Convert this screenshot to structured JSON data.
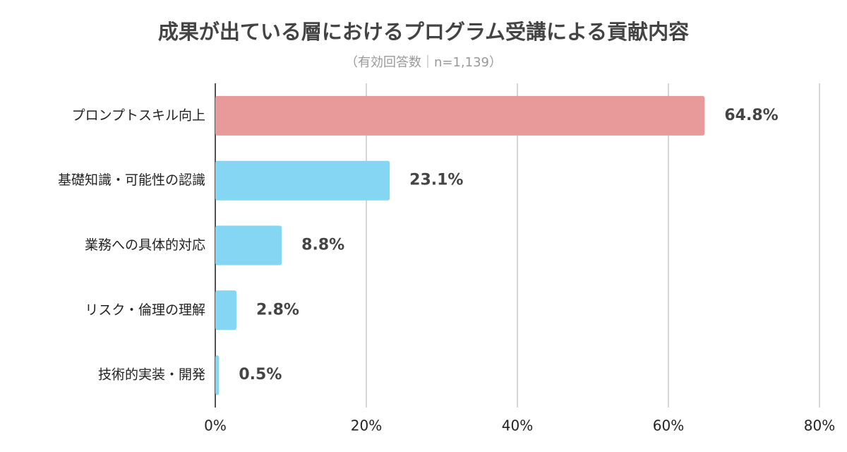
{
  "chart_data": {
    "type": "bar",
    "orientation": "horizontal",
    "title": "成果が出ている層におけるプログラム受講による貢献内容",
    "subtitle": "（有効回答数｜n=1,139）",
    "categories": [
      "プロンプトスキル向上",
      "基礎知識・可能性の認識",
      "業務への具体的対応",
      "リスク・倫理の理解",
      "技術的実装・開発"
    ],
    "values": [
      64.8,
      23.1,
      8.8,
      2.8,
      0.5
    ],
    "value_labels": [
      "64.8%",
      "23.1%",
      "8.8%",
      "2.8%",
      "0.5%"
    ],
    "colors": [
      "#e89a9b",
      "#84d6f2",
      "#84d6f2",
      "#84d6f2",
      "#84d6f2"
    ],
    "xlim": [
      0,
      80
    ],
    "xticks": [
      {
        "value": 0,
        "label": "0%"
      },
      {
        "value": 20,
        "label": "20%"
      },
      {
        "value": 40,
        "label": "40%"
      },
      {
        "value": 60,
        "label": "60%"
      },
      {
        "value": 80,
        "label": "80%"
      }
    ],
    "grid": true
  }
}
